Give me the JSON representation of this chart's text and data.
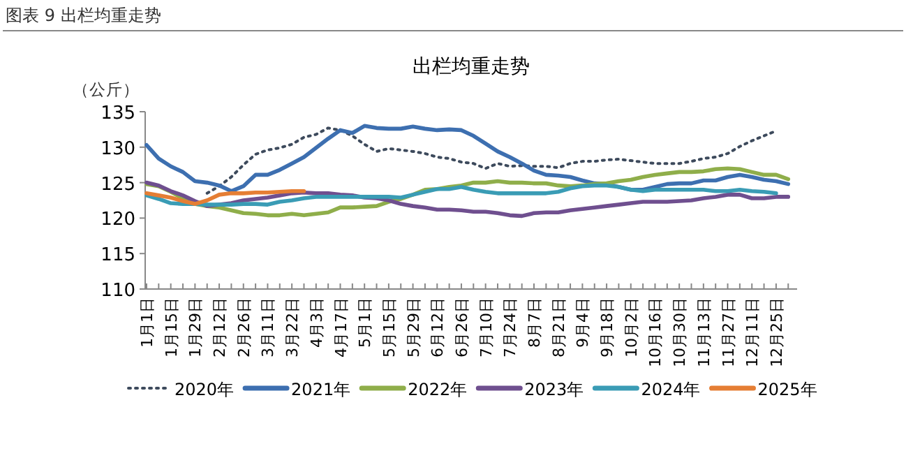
{
  "chart_data": {
    "type": "line",
    "title": "出栏均重走势",
    "ylabel": "（公斤）",
    "annotations": [
      "图表 9  出栏均重走势"
    ],
    "categories": [
      "1月1日",
      null,
      "1月15日",
      null,
      "1月29日",
      null,
      "2月12日",
      null,
      "2月26日",
      null,
      "3月11日",
      null,
      "3月22日",
      null,
      "4月3日",
      null,
      "4月17日",
      null,
      "5月1日",
      null,
      "5月15日",
      null,
      "5月29日",
      null,
      "6月12日",
      null,
      "6月26日",
      null,
      "7月10日",
      null,
      "7月24日",
      null,
      "8月7日",
      null,
      "8月21日",
      null,
      "9月4日",
      null,
      "9月18日",
      null,
      "10月2日",
      null,
      "10月16日",
      null,
      "10月30日",
      null,
      "11月13日",
      null,
      "11月27日",
      null,
      "12月11日",
      null,
      "12月25日",
      null
    ],
    "ylim": [
      110,
      135
    ],
    "yticks": [
      110,
      115,
      120,
      125,
      130,
      135
    ],
    "legend": "bottom",
    "series": [
      {
        "name": "2020年",
        "color": "#3d4a5c",
        "line_style": "dotted",
        "values": [
          null,
          null,
          null,
          null,
          null,
          123.5,
          124.5,
          125.8,
          127.5,
          129,
          129.6,
          129.9,
          130.4,
          131.4,
          131.8,
          132.7,
          132.4,
          131.6,
          130.4,
          129.4,
          129.8,
          129.6,
          129.4,
          129.1,
          128.6,
          128.4,
          127.9,
          127.7,
          127.0,
          127.7,
          127.3,
          127.4,
          127.3,
          127.3,
          127.1,
          127.7,
          128.0,
          128.0,
          128.2,
          128.3,
          128.1,
          127.9,
          127.7,
          127.7,
          127.7,
          128.0,
          128.4,
          128.6,
          129.1,
          130.1,
          130.9,
          131.6,
          132.3,
          null
        ]
      },
      {
        "name": "2021年",
        "color": "#3d6fb0",
        "line_style": "solid",
        "values": [
          130.3,
          128.4,
          127.3,
          126.5,
          125.2,
          125,
          124.6,
          123.8,
          124.5,
          126.1,
          126.1,
          126.8,
          127.7,
          128.6,
          129.9,
          131.2,
          132.4,
          132,
          133.0,
          132.7,
          132.6,
          132.6,
          132.9,
          132.6,
          132.4,
          132.5,
          132.4,
          131.6,
          130.5,
          129.4,
          128.6,
          127.7,
          126.7,
          126.1,
          126,
          125.8,
          125.3,
          124.9,
          124.8,
          124.4,
          124,
          124,
          124.4,
          124.8,
          124.9,
          124.9,
          125.3,
          125.3,
          125.8,
          126.1,
          125.8,
          125.4,
          125.2,
          124.8
        ]
      },
      {
        "name": "2022年",
        "color": "#8fae4a",
        "line_style": "solid",
        "values": [
          124.8,
          124.5,
          123.7,
          122.8,
          122,
          121.7,
          121.5,
          121.1,
          120.7,
          120.6,
          120.4,
          120.4,
          120.6,
          120.4,
          120.6,
          120.8,
          121.5,
          121.5,
          121.6,
          121.7,
          122.3,
          122.7,
          123.3,
          124,
          124.1,
          124.4,
          124.6,
          125,
          125,
          125.2,
          125,
          125,
          124.9,
          124.9,
          124.6,
          124.5,
          124.6,
          124.8,
          124.9,
          125.2,
          125.4,
          125.8,
          126.1,
          126.3,
          126.5,
          126.5,
          126.6,
          126.9,
          127,
          126.9,
          126.5,
          126.1,
          126.1,
          125.5
        ]
      },
      {
        "name": "2023年",
        "color": "#6f4f8f",
        "line_style": "solid",
        "values": [
          125,
          124.6,
          123.8,
          123.2,
          122.4,
          121.7,
          121.9,
          122.1,
          122.5,
          122.7,
          122.9,
          123.2,
          123.5,
          123.6,
          123.5,
          123.5,
          123.3,
          123.2,
          122.9,
          122.8,
          122.5,
          122,
          121.7,
          121.5,
          121.2,
          121.2,
          121.1,
          120.9,
          120.9,
          120.7,
          120.4,
          120.3,
          120.7,
          120.8,
          120.8,
          121.1,
          121.3,
          121.5,
          121.7,
          121.9,
          122.1,
          122.3,
          122.3,
          122.3,
          122.4,
          122.5,
          122.8,
          123.0,
          123.3,
          123.3,
          122.8,
          122.8,
          123.0,
          123.0
        ]
      },
      {
        "name": "2024年",
        "color": "#3a9cb5",
        "line_style": "solid",
        "values": [
          123.2,
          122.7,
          122.1,
          122,
          122,
          121.9,
          121.9,
          121.9,
          122,
          122,
          121.9,
          122.3,
          122.5,
          122.8,
          123,
          123,
          123,
          123,
          123,
          123,
          123,
          122.9,
          123.3,
          123.7,
          124.1,
          124.1,
          124.4,
          124,
          123.7,
          123.5,
          123.5,
          123.5,
          123.5,
          123.5,
          123.7,
          124.2,
          124.5,
          124.6,
          124.6,
          124.4,
          124,
          123.8,
          124,
          124,
          124,
          124,
          124,
          123.8,
          123.8,
          124,
          123.8,
          123.7,
          123.5,
          null
        ]
      },
      {
        "name": "2025年",
        "color": "#e57e34",
        "line_style": "solid",
        "values": [
          123.5,
          123.2,
          122.9,
          122.4,
          122,
          122.5,
          123.3,
          123.5,
          123.5,
          123.6,
          123.6,
          123.7,
          123.8,
          123.8,
          null,
          null,
          null,
          null,
          null,
          null,
          null,
          null,
          null,
          null,
          null,
          null,
          null,
          null,
          null,
          null,
          null,
          null,
          null,
          null,
          null,
          null,
          null,
          null,
          null,
          null,
          null,
          null,
          null,
          null,
          null,
          null,
          null,
          null,
          null,
          null,
          null,
          null,
          null,
          null
        ]
      }
    ]
  }
}
